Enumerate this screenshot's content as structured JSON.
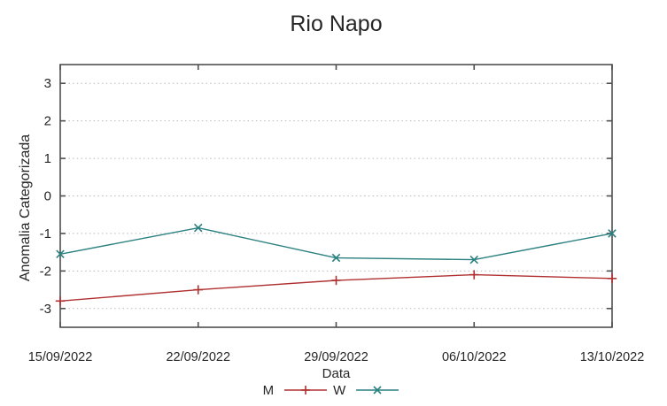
{
  "chart_data": {
    "type": "line",
    "title": "Rio Napo",
    "xlabel": "Data",
    "ylabel": "Anomalia Categorizada",
    "categories": [
      "15/09/2022",
      "22/09/2022",
      "29/09/2022",
      "06/10/2022",
      "13/10/2022"
    ],
    "series": [
      {
        "name": "M",
        "color": "#b03030",
        "marker": "plus",
        "values": [
          -2.8,
          -2.5,
          -2.25,
          -2.1,
          -2.2
        ]
      },
      {
        "name": "W",
        "color": "#2b8080",
        "marker": "cross",
        "values": [
          -1.55,
          -0.85,
          -1.65,
          -1.7,
          -1.0
        ]
      }
    ],
    "ylim": [
      -3.5,
      3.5
    ],
    "yticks": [
      -3,
      -2,
      -1,
      0,
      1,
      2,
      3
    ],
    "grid": "horizontal-dotted",
    "legend_position": "bottom-center"
  },
  "colors": {
    "background": "#ffffff",
    "border": "#4f4f4f",
    "grid": "#b8b8b8",
    "text": "#262626",
    "series_m": "#b03030",
    "series_w": "#2b8080"
  }
}
